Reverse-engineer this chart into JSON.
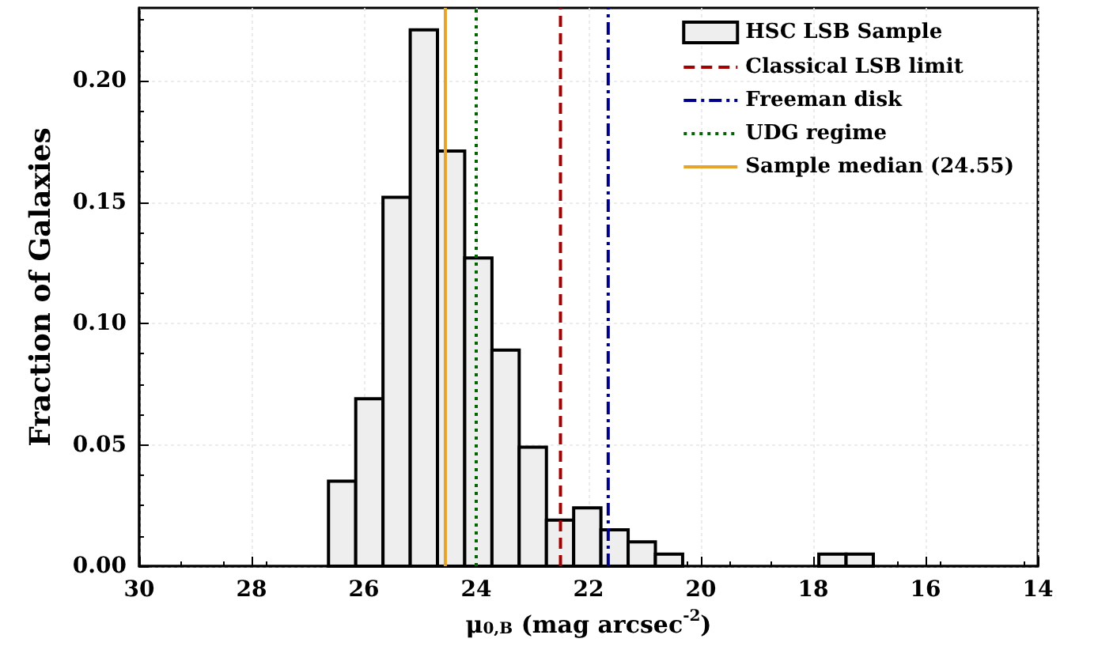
{
  "chart_data": {
    "type": "histogram",
    "xlabel": "μ$_{0,B}$ (mag arcsec$^{-2}$)",
    "ylabel": "Fraction of Galaxies",
    "bins": [
      26.63,
      26.145,
      25.66,
      25.175,
      24.69,
      24.205,
      23.72,
      23.235,
      22.75,
      22.265,
      21.78,
      21.295,
      20.81,
      20.325,
      19.84,
      19.355,
      18.87,
      18.385,
      17.9,
      17.415,
      16.93
    ],
    "series": [
      {
        "name": "HSC LSB Sample",
        "color": "#eeeeee",
        "values": [
          0.035,
          0.069,
          0.152,
          0.221,
          0.171,
          0.127,
          0.089,
          0.049,
          0.019,
          0.024,
          0.015,
          0.01,
          0.005,
          0,
          0,
          0,
          0,
          0,
          0.005,
          0.005
        ]
      },
      {
        "type": "line",
        "name": "Classical LSB limit",
        "color": "#a50000",
        "line_style": "dashed",
        "x": [
          22.5,
          22.5
        ],
        "values": [
          0,
          0.23
        ]
      },
      {
        "type": "line",
        "name": "Freeman disk",
        "color": "#00008b",
        "line_style": "dashdot",
        "x": [
          21.65,
          21.65
        ],
        "values": [
          0,
          0.23
        ]
      },
      {
        "type": "line",
        "name": "UDG regime",
        "color": "#006400",
        "line_style": "dotted",
        "x": [
          24.0,
          24.0
        ],
        "values": [
          0,
          0.23
        ]
      },
      {
        "type": "line",
        "name": "Sample median (24.55)",
        "color": "#e6a52a",
        "line_style": "solid",
        "x": [
          24.55,
          24.55
        ],
        "values": [
          0,
          0.23
        ]
      }
    ],
    "xlim": [
      30,
      14
    ],
    "xticks": [
      30,
      28,
      26,
      24,
      22,
      20,
      18,
      16,
      14
    ],
    "ylim": [
      0,
      0.23
    ],
    "yticks": [
      {
        "value": 0,
        "label": "0.00"
      },
      0.05,
      {
        "value": 0.1,
        "label": "0.10"
      },
      0.15,
      {
        "value": 0.2,
        "label": "0.20"
      }
    ],
    "grid": true,
    "legend": "top right"
  }
}
